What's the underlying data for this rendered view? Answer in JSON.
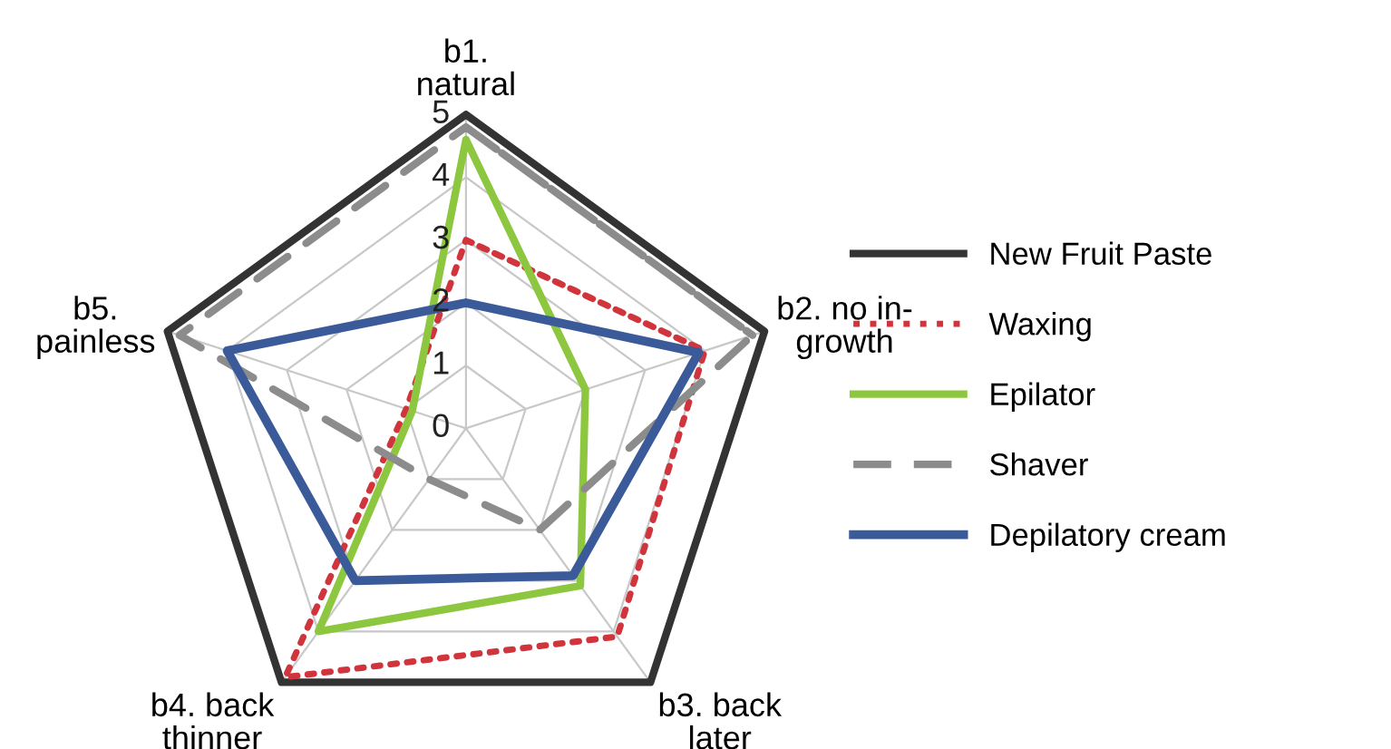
{
  "chart_data": {
    "type": "radar",
    "categories": [
      "b1.\nnatural",
      "b2. no in-\ngrowth",
      "b3. back\nlater",
      "b4. back\nthinner",
      "b5.\npainless"
    ],
    "ylim": [
      0,
      5
    ],
    "yticks": [
      0,
      1,
      2,
      3,
      4,
      5
    ],
    "grid": true,
    "legend": "right",
    "series": [
      {
        "name": "New Fruit Paste",
        "color": "#333333",
        "line_style": "solid",
        "values": [
          5,
          5,
          5,
          5,
          5
        ]
      },
      {
        "name": "Waxing",
        "color": "#d0343c",
        "line_style": "dotted",
        "values": [
          3,
          4,
          4.1,
          4.9,
          1
        ]
      },
      {
        "name": "Epilator",
        "color": "#8dc63f",
        "line_style": "solid",
        "values": [
          4.6,
          2,
          3.1,
          4,
          0.9
        ]
      },
      {
        "name": "Shaver",
        "color": "#8c8c8c",
        "line_style": "dashed",
        "values": [
          4.8,
          4.8,
          2,
          1,
          4.8
        ]
      },
      {
        "name": "Depilatory cream",
        "color": "#3a5a9a",
        "line_style": "double",
        "values": [
          2,
          3.9,
          2.9,
          3,
          4
        ]
      }
    ]
  }
}
